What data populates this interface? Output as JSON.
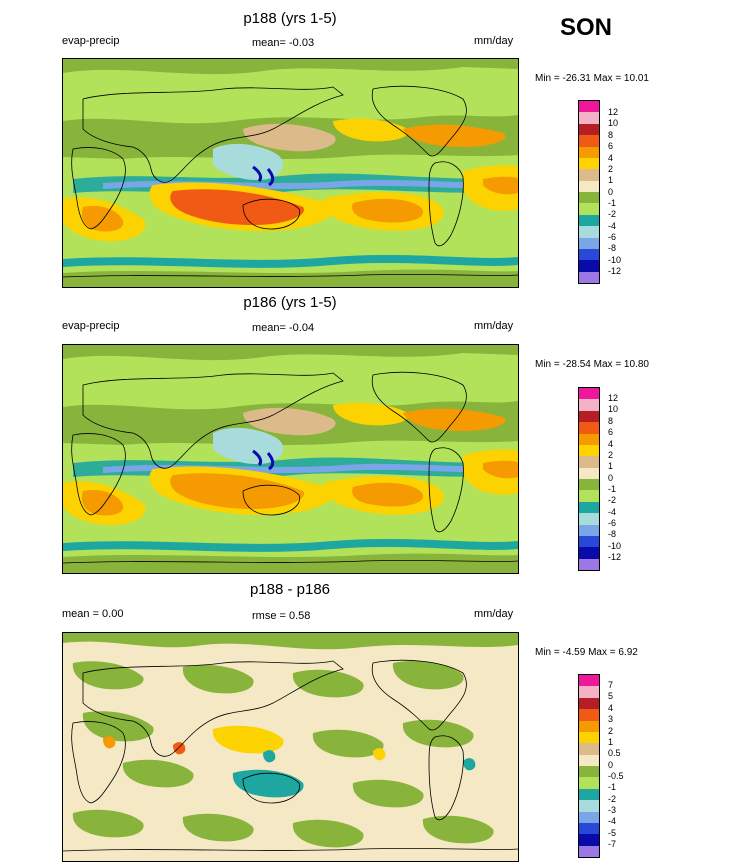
{
  "season": "SON",
  "panels": [
    {
      "title": "p188 (yrs 1-5)",
      "left_label": "evap-precip",
      "center_label": "mean=  -0.03",
      "right_label": "mm/day",
      "minmax": "Min = -26.31 Max =  10.01",
      "colorbar_labels": [
        "12",
        "10",
        "8",
        "6",
        "4",
        "2",
        "1",
        "0",
        "-1",
        "-2",
        "-4",
        "-6",
        "-8",
        "-10",
        "-12"
      ],
      "colors": [
        "#f0189a",
        "#f4b2c6",
        "#b41e24",
        "#f05a14",
        "#f59a00",
        "#fcd200",
        "#dcba8a",
        "#f5e8c4",
        "#88b43c",
        "#b2e25a",
        "#1ea6a0",
        "#a8dcdc",
        "#7aa6e8",
        "#2848d8",
        "#0a0aa8",
        "#9c78e4"
      ],
      "ocean_color": "#b2e25a",
      "land_color": "#88b43c"
    },
    {
      "title": "p186 (yrs 1-5)",
      "left_label": "evap-precip",
      "center_label": "mean=  -0.04",
      "right_label": "mm/day",
      "minmax": "Min = -28.54 Max =  10.80",
      "colorbar_labels": [
        "12",
        "10",
        "8",
        "6",
        "4",
        "2",
        "1",
        "0",
        "-1",
        "-2",
        "-4",
        "-6",
        "-8",
        "-10",
        "-12"
      ],
      "colors": [
        "#f0189a",
        "#f4b2c6",
        "#b41e24",
        "#f05a14",
        "#f59a00",
        "#fcd200",
        "#dcba8a",
        "#f5e8c4",
        "#88b43c",
        "#b2e25a",
        "#1ea6a0",
        "#a8dcdc",
        "#7aa6e8",
        "#2848d8",
        "#0a0aa8",
        "#9c78e4"
      ],
      "ocean_color": "#b2e25a",
      "land_color": "#88b43c"
    },
    {
      "title": "p188 - p186",
      "left_label": "mean =   0.00",
      "center_label": "rmse =   0.58",
      "right_label": "mm/day",
      "minmax": "Min =  -4.59 Max =   6.92",
      "colorbar_labels": [
        "7",
        "5",
        "4",
        "3",
        "2",
        "1",
        "0.5",
        "0",
        "-0.5",
        "-1",
        "-2",
        "-3",
        "-4",
        "-5",
        "-7"
      ],
      "colors": [
        "#f0189a",
        "#f4b2c6",
        "#b41e24",
        "#f05a14",
        "#f59a00",
        "#fcd200",
        "#dcba8a",
        "#f5e8c4",
        "#88b43c",
        "#b2e25a",
        "#1ea6a0",
        "#a8dcdc",
        "#7aa6e8",
        "#2848d8",
        "#0a0aa8",
        "#9c78e4"
      ],
      "ocean_color": "#f5e8c4",
      "land_color": "#88b43c"
    }
  ]
}
